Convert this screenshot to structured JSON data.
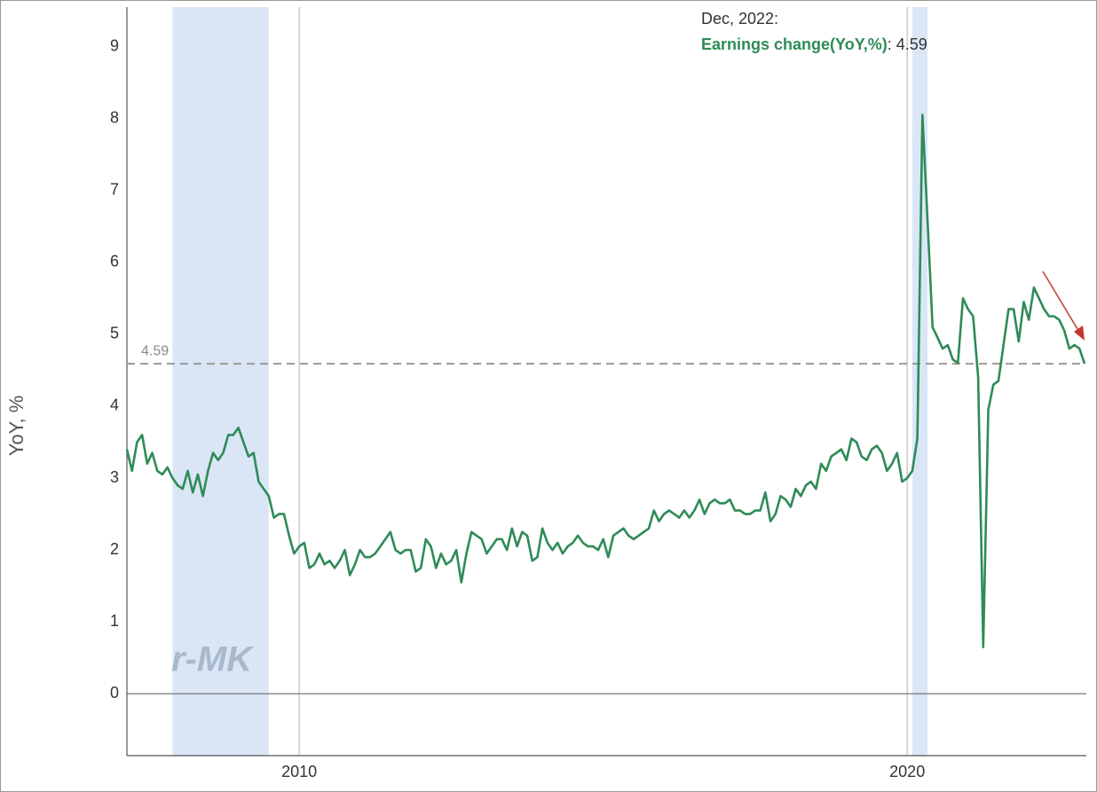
{
  "chart_data": {
    "type": "line",
    "y_label": "YoY, %",
    "tooltip_date": "Dec, 2022:",
    "watermark": "r-MK",
    "x": [
      "2007-03",
      "2007-04",
      "2007-05",
      "2007-06",
      "2007-07",
      "2007-08",
      "2007-09",
      "2007-10",
      "2007-11",
      "2007-12",
      "2008-01",
      "2008-02",
      "2008-03",
      "2008-04",
      "2008-05",
      "2008-06",
      "2008-07",
      "2008-08",
      "2008-09",
      "2008-10",
      "2008-11",
      "2008-12",
      "2009-01",
      "2009-02",
      "2009-03",
      "2009-04",
      "2009-05",
      "2009-06",
      "2009-07",
      "2009-08",
      "2009-09",
      "2009-10",
      "2009-11",
      "2009-12",
      "2010-01",
      "2010-02",
      "2010-03",
      "2010-04",
      "2010-05",
      "2010-06",
      "2010-07",
      "2010-08",
      "2010-09",
      "2010-10",
      "2010-11",
      "2010-12",
      "2011-01",
      "2011-02",
      "2011-03",
      "2011-04",
      "2011-05",
      "2011-06",
      "2011-07",
      "2011-08",
      "2011-09",
      "2011-10",
      "2011-11",
      "2011-12",
      "2012-01",
      "2012-02",
      "2012-03",
      "2012-04",
      "2012-05",
      "2012-06",
      "2012-07",
      "2012-08",
      "2012-09",
      "2012-10",
      "2012-11",
      "2012-12",
      "2013-01",
      "2013-02",
      "2013-03",
      "2013-04",
      "2013-05",
      "2013-06",
      "2013-07",
      "2013-08",
      "2013-09",
      "2013-10",
      "2013-11",
      "2013-12",
      "2014-01",
      "2014-02",
      "2014-03",
      "2014-04",
      "2014-05",
      "2014-06",
      "2014-07",
      "2014-08",
      "2014-09",
      "2014-10",
      "2014-11",
      "2014-12",
      "2015-01",
      "2015-02",
      "2015-03",
      "2015-04",
      "2015-05",
      "2015-06",
      "2015-07",
      "2015-08",
      "2015-09",
      "2015-10",
      "2015-11",
      "2015-12",
      "2016-01",
      "2016-02",
      "2016-03",
      "2016-04",
      "2016-05",
      "2016-06",
      "2016-07",
      "2016-08",
      "2016-09",
      "2016-10",
      "2016-11",
      "2016-12",
      "2017-01",
      "2017-02",
      "2017-03",
      "2017-04",
      "2017-05",
      "2017-06",
      "2017-07",
      "2017-08",
      "2017-09",
      "2017-10",
      "2017-11",
      "2017-12",
      "2018-01",
      "2018-02",
      "2018-03",
      "2018-04",
      "2018-05",
      "2018-06",
      "2018-07",
      "2018-08",
      "2018-09",
      "2018-10",
      "2018-11",
      "2018-12",
      "2019-01",
      "2019-02",
      "2019-03",
      "2019-04",
      "2019-05",
      "2019-06",
      "2019-07",
      "2019-08",
      "2019-09",
      "2019-10",
      "2019-11",
      "2019-12",
      "2020-01",
      "2020-02",
      "2020-03",
      "2020-04",
      "2020-05",
      "2020-06",
      "2020-07",
      "2020-08",
      "2020-09",
      "2020-10",
      "2020-11",
      "2020-12",
      "2021-01",
      "2021-02",
      "2021-03",
      "2021-04",
      "2021-05",
      "2021-06",
      "2021-07",
      "2021-08",
      "2021-09",
      "2021-10",
      "2021-11",
      "2021-12",
      "2022-01",
      "2022-02",
      "2022-03",
      "2022-04",
      "2022-05",
      "2022-06",
      "2022-07",
      "2022-08",
      "2022-09",
      "2022-10",
      "2022-11",
      "2022-12"
    ],
    "series": [
      {
        "name": "Earnings change(YoY,%)",
        "color": "#2e8b57",
        "values": [
          3.4,
          3.1,
          3.5,
          3.6,
          3.2,
          3.35,
          3.1,
          3.05,
          3.15,
          3.0,
          2.9,
          2.85,
          3.1,
          2.8,
          3.05,
          2.75,
          3.1,
          3.35,
          3.25,
          3.35,
          3.6,
          3.6,
          3.7,
          3.5,
          3.3,
          3.35,
          2.95,
          2.85,
          2.75,
          2.45,
          2.5,
          2.5,
          2.2,
          1.95,
          2.05,
          2.1,
          1.75,
          1.8,
          1.95,
          1.8,
          1.85,
          1.75,
          1.85,
          2.0,
          1.65,
          1.8,
          2.0,
          1.9,
          1.9,
          1.95,
          2.05,
          2.15,
          2.25,
          2.0,
          1.95,
          2.0,
          2.0,
          1.7,
          1.75,
          2.15,
          2.05,
          1.75,
          1.95,
          1.8,
          1.85,
          2.0,
          1.55,
          1.95,
          2.25,
          2.2,
          2.15,
          1.95,
          2.05,
          2.15,
          2.15,
          2.0,
          2.3,
          2.05,
          2.25,
          2.2,
          1.85,
          1.9,
          2.3,
          2.1,
          2.0,
          2.1,
          1.95,
          2.05,
          2.1,
          2.2,
          2.1,
          2.05,
          2.05,
          2.0,
          2.15,
          1.9,
          2.2,
          2.25,
          2.3,
          2.2,
          2.15,
          2.2,
          2.25,
          2.3,
          2.55,
          2.4,
          2.5,
          2.55,
          2.5,
          2.45,
          2.55,
          2.45,
          2.55,
          2.7,
          2.5,
          2.65,
          2.7,
          2.65,
          2.65,
          2.7,
          2.55,
          2.55,
          2.5,
          2.5,
          2.55,
          2.55,
          2.8,
          2.4,
          2.5,
          2.75,
          2.7,
          2.6,
          2.85,
          2.75,
          2.9,
          2.95,
          2.85,
          3.2,
          3.1,
          3.3,
          3.35,
          3.4,
          3.25,
          3.55,
          3.5,
          3.3,
          3.25,
          3.4,
          3.45,
          3.35,
          3.1,
          3.2,
          3.35,
          2.95,
          3.0,
          3.1,
          3.55,
          8.05,
          6.6,
          5.1,
          4.95,
          4.8,
          4.85,
          4.65,
          4.6,
          5.5,
          5.35,
          5.25,
          4.4,
          0.65,
          3.95,
          4.3,
          4.35,
          4.85,
          5.35,
          5.35,
          4.9,
          5.45,
          5.2,
          5.65,
          5.5,
          5.35,
          5.25,
          5.25,
          5.2,
          5.05,
          4.8,
          4.85,
          4.8,
          4.59
        ]
      }
    ],
    "xlim": [
      "2007-03",
      "2022-12"
    ],
    "xticks": [
      {
        "value": "2010-01",
        "label": "2010"
      },
      {
        "value": "2020-01",
        "label": "2020"
      }
    ],
    "ylim": [
      -0.86,
      9.55
    ],
    "yticks": [
      0,
      1,
      2,
      3,
      4,
      5,
      6,
      7,
      8,
      9
    ],
    "shaded": [
      {
        "start": "2007-12",
        "end": "2009-06"
      },
      {
        "start": "2020-02",
        "end": "2020-04"
      }
    ],
    "reference_line": 4.59
  }
}
